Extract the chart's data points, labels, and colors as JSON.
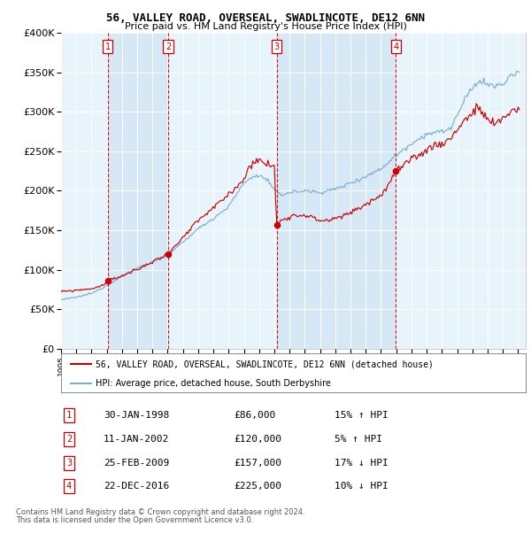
{
  "title": "56, VALLEY ROAD, OVERSEAL, SWADLINCOTE, DE12 6NN",
  "subtitle": "Price paid vs. HM Land Registry's House Price Index (HPI)",
  "legend_line1": "56, VALLEY ROAD, OVERSEAL, SWADLINCOTE, DE12 6NN (detached house)",
  "legend_line2": "HPI: Average price, detached house, South Derbyshire",
  "footer1": "Contains HM Land Registry data © Crown copyright and database right 2024.",
  "footer2": "This data is licensed under the Open Government Licence v3.0.",
  "sale_color": "#cc0000",
  "hpi_color": "#7aadd6",
  "shade_color": "#d6e8f5",
  "background_color": "#e8f4fb",
  "transactions": [
    {
      "num": 1,
      "date": "30-JAN-1998",
      "price": 86000,
      "pct": "15%",
      "dir": "↑"
    },
    {
      "num": 2,
      "date": "11-JAN-2002",
      "price": 120000,
      "pct": "5%",
      "dir": "↑"
    },
    {
      "num": 3,
      "date": "25-FEB-2009",
      "price": 157000,
      "pct": "17%",
      "dir": "↓"
    },
    {
      "num": 4,
      "date": "22-DEC-2016",
      "price": 225000,
      "pct": "10%",
      "dir": "↓"
    }
  ],
  "ylim": [
    0,
    400000
  ],
  "yticks": [
    0,
    50000,
    100000,
    150000,
    200000,
    250000,
    300000,
    350000,
    400000
  ],
  "ytick_labels": [
    "£0",
    "£50K",
    "£100K",
    "£150K",
    "£200K",
    "£250K",
    "£300K",
    "£350K",
    "£400K"
  ],
  "xstart": 1995.0,
  "xend": 2025.5,
  "trans_dates_decimal": [
    1998.074,
    2002.027,
    2009.147,
    2016.978
  ],
  "trans_prices": [
    86000,
    120000,
    157000,
    225000
  ]
}
